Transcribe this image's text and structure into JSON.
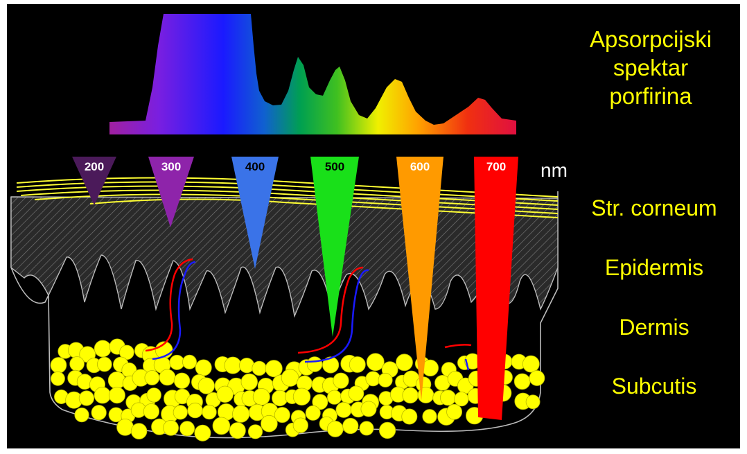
{
  "spectrum": {
    "title_lines": [
      "Apsorpcijski",
      "spektar",
      "porfirina"
    ]
  },
  "wavelengths": {
    "unit": "nm",
    "markers": [
      {
        "label": "200",
        "color": "#4B1A5A",
        "text_color": "#FFFFFF"
      },
      {
        "label": "300",
        "color": "#8E24AA",
        "text_color": "#FFFFFF"
      },
      {
        "label": "400",
        "color": "#3A73E8",
        "text_color": "#000000"
      },
      {
        "label": "500",
        "color": "#19E019",
        "text_color": "#000000"
      },
      {
        "label": "600",
        "color": "#FF9A00",
        "text_color": "#FFFFFF"
      },
      {
        "label": "700",
        "color": "#FF0000",
        "text_color": "#FFFFFF"
      }
    ]
  },
  "layers": {
    "stratum_corneum": "Str. corneum",
    "epidermis": "Epidermis",
    "dermis": "Dermis",
    "subcutis": "Subcutis"
  },
  "colors": {
    "background": "#000000",
    "label_text": "#FFFF00",
    "fat_cells": "#FFFF00",
    "corneum_lines": "#FFFF33",
    "outline": "#BBBBBB",
    "artery": "#FF0000",
    "vein": "#1A1AFF"
  }
}
